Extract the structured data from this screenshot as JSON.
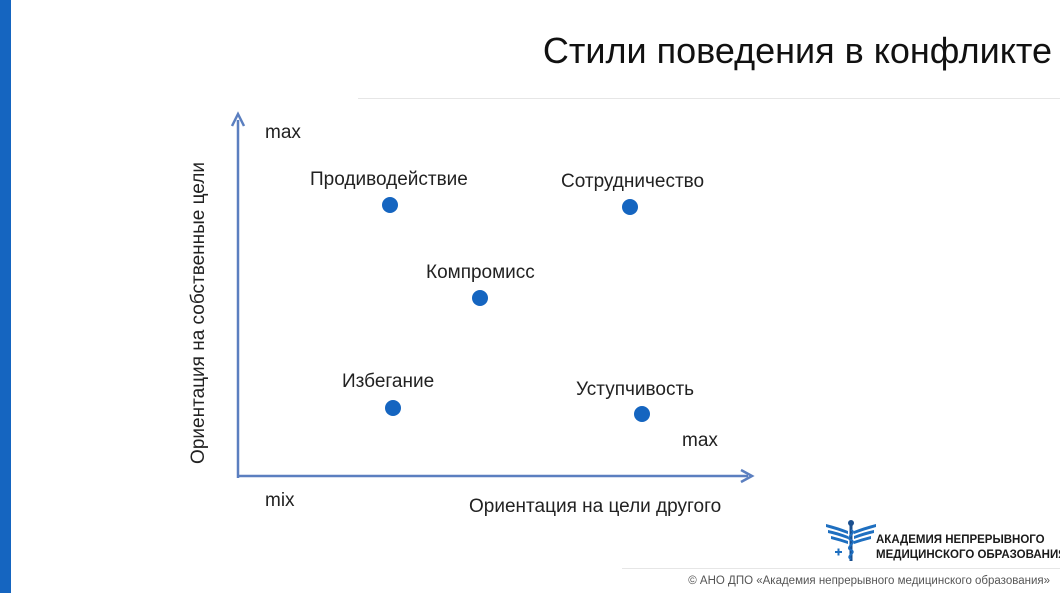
{
  "slide": {
    "title": "Стили поведения в конфликте",
    "logo_text_line1": "АКАДЕМИЯ НЕПРЕРЫВНОГО",
    "logo_text_line2": "МЕДИЦИНСКОГО ОБРАЗОВАНИЯ",
    "footer": "© АНО ДПО «Академия непрерывного медицинского образования»"
  },
  "diagram": {
    "y_axis_label": "Ориентация на собственные цели",
    "x_axis_label": "Ориентация на цели другого",
    "y_max_label": "max",
    "x_max_label": "max",
    "origin_label": "mix",
    "styles": [
      {
        "label": "Продиводействие"
      },
      {
        "label": "Сотрудничество"
      },
      {
        "label": "Компромисс"
      },
      {
        "label": "Избегание"
      },
      {
        "label": "Уступчивость"
      }
    ],
    "colors": {
      "axis": "#5b7fc0",
      "dot": "#1565c0",
      "accent_bar": "#1565c0"
    }
  }
}
